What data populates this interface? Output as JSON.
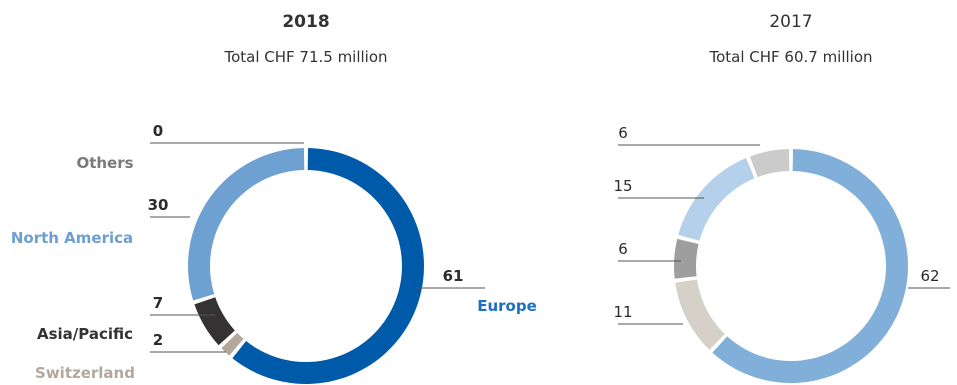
{
  "chart_data": [
    {
      "type": "donut",
      "year": "2018",
      "title": "2018",
      "subtitle": "Total CHF 71.5 million",
      "slices": [
        {
          "name": "Europe",
          "value": 61,
          "label": "61",
          "color": "#005aaa",
          "label_color": "#1d6fc4"
        },
        {
          "name": "Switzerland",
          "value": 2,
          "label": "2",
          "color": "#b3a89b",
          "label_color": "#b3a89b"
        },
        {
          "name": "Asia/Pacific",
          "value": 7,
          "label": "7",
          "color": "#353233",
          "label_color": "#333333"
        },
        {
          "name": "North America",
          "value": 30,
          "label": "30",
          "color": "#6ea1d1",
          "label_color": "#6c9fd3"
        },
        {
          "name": "Others",
          "value": 0,
          "label": "0",
          "color": "#7d7d7d",
          "label_color": "#7a7a7a"
        }
      ]
    },
    {
      "type": "donut",
      "year": "2017",
      "title": "2017",
      "subtitle": "Total CHF 60.7 million",
      "slices": [
        {
          "name": "Europe",
          "value": 62,
          "label": "62",
          "color": "#80afd9"
        },
        {
          "name": "Switzerland",
          "value": 11,
          "label": "11",
          "color": "#d6d1c8"
        },
        {
          "name": "Asia/Pacific",
          "value": 6,
          "label": "6",
          "color": "#9e9e9e"
        },
        {
          "name": "North America",
          "value": 15,
          "label": "15",
          "color": "#b4d0ea"
        },
        {
          "name": "Others",
          "value": 6,
          "label": "6",
          "color": "#cbcbcb"
        }
      ]
    }
  ]
}
